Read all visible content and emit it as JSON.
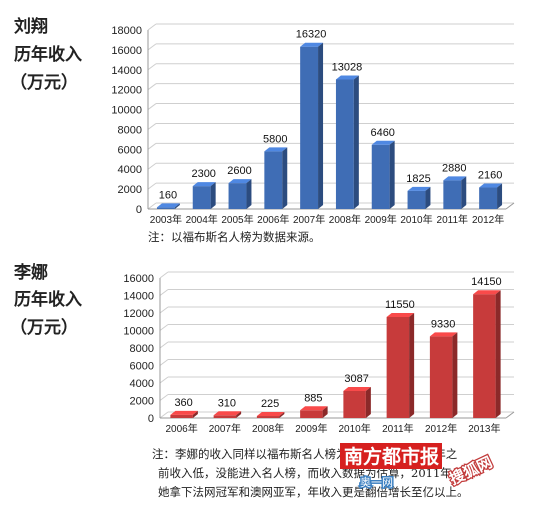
{
  "chart_data": [
    {
      "type": "bar",
      "title_lines": [
        "刘翔",
        "历年收入",
        "（万元）"
      ],
      "categories": [
        "2003年",
        "2004年",
        "2005年",
        "2006年",
        "2007年",
        "2008年",
        "2009年",
        "2010年",
        "2011年",
        "2012年"
      ],
      "values": [
        160,
        2300,
        2600,
        5800,
        16320,
        13028,
        6460,
        1825,
        2880,
        2160
      ],
      "ylim": [
        0,
        18000
      ],
      "yticks": [
        "0",
        "2000",
        "4000",
        "6000",
        "8000",
        "10000",
        "12000",
        "14000",
        "16000",
        "18000"
      ],
      "grid": true,
      "color": "#3f6db5",
      "note": "注：以福布斯名人榜为数据来源。"
    },
    {
      "type": "bar",
      "title_lines": [
        "李娜",
        "历年收入",
        "（万元）"
      ],
      "categories": [
        "2006年",
        "2007年",
        "2008年",
        "2009年",
        "2010年",
        "2011年",
        "2012年",
        "2013年"
      ],
      "values": [
        360,
        310,
        225,
        885,
        3087,
        11550,
        9330,
        14150
      ],
      "ylim": [
        0,
        16000
      ],
      "yticks": [
        "0",
        "2000",
        "4000",
        "6000",
        "8000",
        "10000",
        "12000",
        "14000",
        "16000"
      ],
      "grid": true,
      "color": "#c73b3b",
      "note_lines": [
        "注：李娜的收入同样以福布斯名人榜为数据来源，2009年之",
        "前收入低，没能进入名人榜，而收入数据为估算，2011年",
        "她拿下法网冠军和澳网亚军，年收入更是翻倍增长至亿以上。"
      ]
    }
  ],
  "watermark": {
    "paper": "南方都市报",
    "site": "奥一网",
    "site2": "搜狐网"
  }
}
